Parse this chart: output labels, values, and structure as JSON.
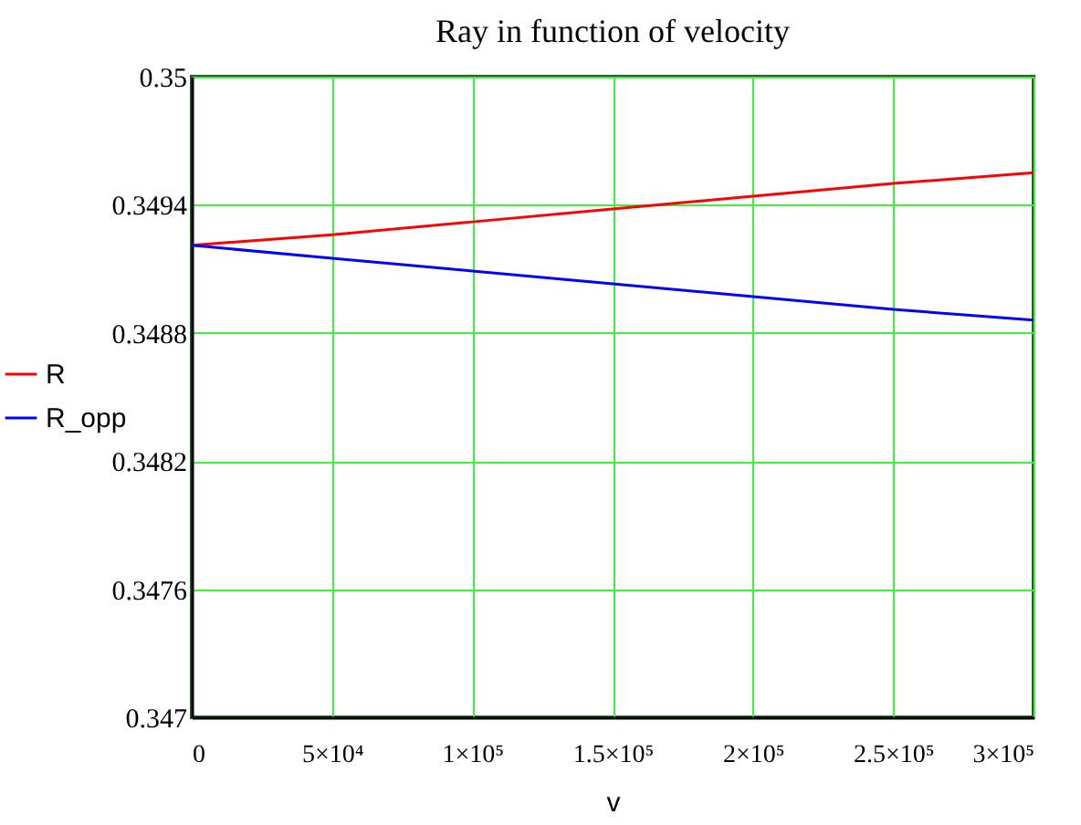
{
  "chart_data": {
    "type": "line",
    "title": "Ray in function of velocity",
    "xlabel": "v",
    "x": [
      0,
      50000,
      100000,
      150000,
      200000,
      250000,
      300000
    ],
    "series": [
      {
        "name": "R",
        "color": "#ff0000",
        "values": [
          0.34921,
          0.34926,
          0.34932,
          0.34938,
          0.34944,
          0.3495,
          0.34955
        ]
      },
      {
        "name": "R_opp",
        "color": "#0000ff",
        "values": [
          0.34921,
          0.34915,
          0.34909,
          0.34903,
          0.34897,
          0.34891,
          0.34886
        ]
      }
    ],
    "xlim": [
      0,
      300000
    ],
    "xticks": [
      0,
      {
        "value": 50000,
        "label": "5×10⁴"
      },
      {
        "value": 100000,
        "label": "1×10⁵"
      },
      {
        "value": 150000,
        "label": "1.5×10⁵"
      },
      {
        "value": 200000,
        "label": "2×10⁵"
      },
      {
        "value": 250000,
        "label": "2.5×10⁵"
      },
      {
        "value": 300000,
        "label": "3×10⁵"
      }
    ],
    "ylim": [
      0.347,
      0.35
    ],
    "yticks": [
      0.347,
      0.3476,
      0.3482,
      0.3488,
      0.3494,
      0.35
    ],
    "grid": true,
    "legend": "left"
  }
}
